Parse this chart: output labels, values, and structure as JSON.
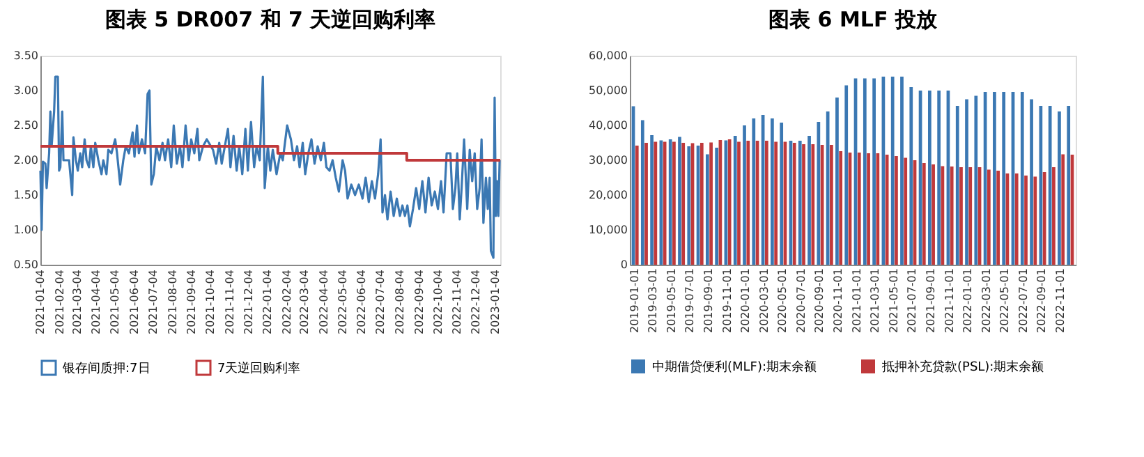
{
  "chart_data": [
    {
      "type": "line",
      "title": "图表 5 DR007 和 7 天逆回购利率",
      "legend": "bottom",
      "grid": false,
      "xlim": [
        "2021-01-04",
        "2023-01-12"
      ],
      "xticks": [
        "2021-01-04",
        "2021-02-04",
        "2021-03-04",
        "2021-04-04",
        "2021-05-04",
        "2021-06-04",
        "2021-07-04",
        "2021-08-04",
        "2021-09-04",
        "2021-10-04",
        "2021-11-04",
        "2021-12-04",
        "2022-01-04",
        "2022-02-04",
        "2022-03-04",
        "2022-04-04",
        "2022-05-04",
        "2022-06-04",
        "2022-07-04",
        "2022-08-04",
        "2022-09-04",
        "2022-10-04",
        "2022-11-04",
        "2022-12-04",
        "2023-01-04"
      ],
      "ylim": [
        0.5,
        3.5
      ],
      "yticks": [
        {
          "value": 0.5,
          "label": "0.50"
        },
        {
          "value": 1.0,
          "label": "1.00"
        },
        {
          "value": 1.5,
          "label": "1.50"
        },
        {
          "value": 2.0,
          "label": "2.00"
        },
        {
          "value": 2.5,
          "label": "2.50"
        },
        {
          "value": 3.0,
          "label": "3.00"
        },
        {
          "value": 3.5,
          "label": "3.50"
        }
      ],
      "series": [
        {
          "name": "银存间质押:7日",
          "color": "#3b78b3",
          "type": "line",
          "x": [
            "2021-01-04",
            "2021-01-06",
            "2021-01-08",
            "2021-01-12",
            "2021-01-14",
            "2021-01-18",
            "2021-01-20",
            "2021-01-22",
            "2021-01-26",
            "2021-01-28",
            "2021-02-01",
            "2021-02-03",
            "2021-02-05",
            "2021-02-08",
            "2021-02-10",
            "2021-02-19",
            "2021-02-24",
            "2021-02-26",
            "2021-03-02",
            "2021-03-05",
            "2021-03-09",
            "2021-03-12",
            "2021-03-16",
            "2021-03-19",
            "2021-03-23",
            "2021-03-26",
            "2021-03-30",
            "2021-04-02",
            "2021-04-07",
            "2021-04-12",
            "2021-04-15",
            "2021-04-20",
            "2021-04-23",
            "2021-04-28",
            "2021-05-04",
            "2021-05-07",
            "2021-05-12",
            "2021-05-17",
            "2021-05-21",
            "2021-05-26",
            "2021-06-01",
            "2021-06-04",
            "2021-06-08",
            "2021-06-11",
            "2021-06-16",
            "2021-06-21",
            "2021-06-25",
            "2021-06-28",
            "2021-07-01",
            "2021-07-05",
            "2021-07-09",
            "2021-07-14",
            "2021-07-19",
            "2021-07-23",
            "2021-07-28",
            "2021-08-02",
            "2021-08-06",
            "2021-08-11",
            "2021-08-16",
            "2021-08-20",
            "2021-08-25",
            "2021-08-30",
            "2021-09-03",
            "2021-09-08",
            "2021-09-13",
            "2021-09-16",
            "2021-09-22",
            "2021-09-28",
            "2021-10-08",
            "2021-10-13",
            "2021-10-18",
            "2021-10-22",
            "2021-10-27",
            "2021-11-01",
            "2021-11-05",
            "2021-11-10",
            "2021-11-15",
            "2021-11-19",
            "2021-11-24",
            "2021-11-29",
            "2021-12-03",
            "2021-12-08",
            "2021-12-13",
            "2021-12-17",
            "2021-12-22",
            "2021-12-27",
            "2021-12-30",
            "2022-01-04",
            "2022-01-08",
            "2022-01-12",
            "2022-01-18",
            "2022-01-24",
            "2022-01-28",
            "2022-02-04",
            "2022-02-10",
            "2022-02-15",
            "2022-02-20",
            "2022-02-24",
            "2022-03-01",
            "2022-03-05",
            "2022-03-10",
            "2022-03-15",
            "2022-03-20",
            "2022-03-25",
            "2022-03-30",
            "2022-04-04",
            "2022-04-08",
            "2022-04-13",
            "2022-04-18",
            "2022-04-23",
            "2022-04-28",
            "2022-05-04",
            "2022-05-08",
            "2022-05-12",
            "2022-05-18",
            "2022-05-24",
            "2022-05-30",
            "2022-06-05",
            "2022-06-10",
            "2022-06-15",
            "2022-06-20",
            "2022-06-25",
            "2022-06-30",
            "2022-07-04",
            "2022-07-07",
            "2022-07-11",
            "2022-07-15",
            "2022-07-20",
            "2022-07-25",
            "2022-07-30",
            "2022-08-04",
            "2022-08-08",
            "2022-08-12",
            "2022-08-16",
            "2022-08-20",
            "2022-08-25",
            "2022-08-30",
            "2022-09-04",
            "2022-09-09",
            "2022-09-14",
            "2022-09-19",
            "2022-09-24",
            "2022-09-29",
            "2022-10-04",
            "2022-10-09",
            "2022-10-13",
            "2022-10-18",
            "2022-10-24",
            "2022-10-28",
            "2022-11-01",
            "2022-11-04",
            "2022-11-08",
            "2022-11-11",
            "2022-11-15",
            "2022-11-20",
            "2022-11-24",
            "2022-11-28",
            "2022-12-02",
            "2022-12-06",
            "2022-12-10",
            "2022-12-13",
            "2022-12-16",
            "2022-12-20",
            "2022-12-23",
            "2022-12-26",
            "2022-12-28",
            "2023-01-01",
            "2023-01-03",
            "2023-01-05",
            "2023-01-07",
            "2023-01-09",
            "2023-01-11"
          ],
          "values": [
            1.85,
            1.0,
            1.98,
            1.95,
            1.6,
            2.1,
            2.7,
            2.2,
            2.7,
            3.2,
            3.2,
            1.85,
            1.9,
            2.7,
            2.0,
            2.0,
            1.5,
            2.33,
            2.0,
            1.85,
            2.1,
            1.9,
            2.3,
            2.0,
            1.9,
            2.2,
            1.9,
            2.25,
            2.0,
            1.8,
            2.0,
            1.8,
            2.15,
            2.1,
            2.3,
            2.1,
            1.65,
            2.0,
            2.2,
            2.1,
            2.4,
            2.05,
            2.5,
            2.1,
            2.3,
            2.1,
            2.95,
            3.0,
            1.65,
            1.8,
            2.2,
            2.0,
            2.25,
            2.0,
            2.3,
            1.9,
            2.5,
            1.95,
            2.2,
            1.9,
            2.5,
            2.0,
            2.3,
            2.1,
            2.45,
            2.0,
            2.2,
            2.3,
            2.15,
            1.95,
            2.25,
            1.95,
            2.2,
            2.45,
            1.9,
            2.35,
            1.85,
            2.2,
            1.8,
            2.45,
            1.85,
            2.55,
            1.9,
            2.2,
            2.0,
            3.2,
            1.6,
            2.2,
            1.85,
            2.15,
            1.8,
            2.1,
            2.0,
            2.5,
            2.3,
            2.0,
            2.2,
            1.9,
            2.25,
            1.8,
            2.1,
            2.3,
            1.95,
            2.2,
            2.0,
            2.25,
            1.9,
            1.85,
            2.0,
            1.75,
            1.55,
            2.0,
            1.85,
            1.45,
            1.65,
            1.5,
            1.65,
            1.45,
            1.75,
            1.4,
            1.7,
            1.45,
            1.8,
            2.3,
            1.25,
            1.5,
            1.15,
            1.55,
            1.2,
            1.45,
            1.2,
            1.35,
            1.2,
            1.35,
            1.05,
            1.3,
            1.6,
            1.3,
            1.7,
            1.25,
            1.75,
            1.35,
            1.55,
            1.3,
            1.7,
            1.25,
            2.1,
            2.1,
            1.3,
            1.6,
            2.1,
            1.15,
            1.6,
            2.3,
            1.3,
            2.15,
            1.7,
            2.1,
            1.3,
            1.6,
            2.3,
            1.1,
            1.75,
            1.3,
            1.75,
            0.7,
            0.6,
            2.9,
            1.2,
            1.7,
            1.2,
            2.0
          ]
        },
        {
          "name": "7天逆回购利率",
          "color": "#c0393b",
          "type": "step",
          "x": [
            "2021-01-04",
            "2022-01-20",
            "2022-08-15",
            "2023-01-12"
          ],
          "values": [
            2.2,
            2.1,
            2.0,
            2.0
          ]
        }
      ]
    },
    {
      "type": "bar",
      "title": "图表 6 MLF 投放",
      "legend": "bottom",
      "grid": false,
      "categories": [
        "2019-01-01",
        null,
        "2019-03-01",
        null,
        "2019-05-01",
        null,
        "2019-07-01",
        null,
        "2019-09-01",
        null,
        "2019-11-01",
        null,
        "2020-01-01",
        null,
        "2020-03-01",
        null,
        "2020-05-01",
        null,
        "2020-07-01",
        null,
        "2020-09-01",
        null,
        "2020-11-01",
        null,
        "2021-01-01",
        null,
        "2021-03-01",
        null,
        "2021-05-01",
        null,
        "2021-07-01",
        null,
        "2021-09-01",
        null,
        "2021-11-01",
        null,
        "2022-01-01",
        null,
        "2022-03-01",
        null,
        "2022-05-01",
        null,
        "2022-07-01",
        null,
        "2022-09-01",
        null,
        "2022-11-01",
        null
      ],
      "ylim": [
        0,
        60000
      ],
      "yticks": [
        0,
        {
          "value": 10000,
          "label": "10,000"
        },
        {
          "value": 20000,
          "label": "20,000"
        },
        {
          "value": 30000,
          "label": "30,000"
        },
        {
          "value": 40000,
          "label": "40,000"
        },
        {
          "value": 50000,
          "label": "50,000"
        },
        {
          "value": 60000,
          "label": "60,000"
        }
      ],
      "series": [
        {
          "name": "中期借贷便利(MLF):期末余额",
          "color": "#3b78b3",
          "values": [
            45500,
            41500,
            37200,
            35700,
            36000,
            36700,
            34000,
            34200,
            31700,
            33600,
            35700,
            37000,
            40000,
            42000,
            43000,
            42000,
            40800,
            35600,
            35600,
            37000,
            41000,
            44000,
            48000,
            51500,
            53500,
            53500,
            53500,
            54000,
            54000,
            54000,
            51000,
            50000,
            50000,
            50000,
            50000,
            45600,
            47500,
            48500,
            49600,
            49600,
            49600,
            49600,
            49600,
            47500,
            45600,
            45600,
            44000,
            45600
          ]
        },
        {
          "name": "抵押补充贷款(PSL):期末余额",
          "color": "#c0393b",
          "values": [
            34200,
            35000,
            35300,
            35300,
            35300,
            35000,
            34900,
            35000,
            35100,
            35800,
            36000,
            35300,
            35600,
            35600,
            35600,
            35300,
            35300,
            35000,
            34600,
            34600,
            34400,
            34400,
            32600,
            32200,
            32200,
            32000,
            32000,
            31600,
            31200,
            30700,
            30000,
            29200,
            28800,
            28300,
            28200,
            28000,
            28000,
            28000,
            27300,
            27000,
            26200,
            26200,
            25600,
            25300,
            26600,
            28000,
            31700,
            31600
          ]
        }
      ]
    }
  ]
}
